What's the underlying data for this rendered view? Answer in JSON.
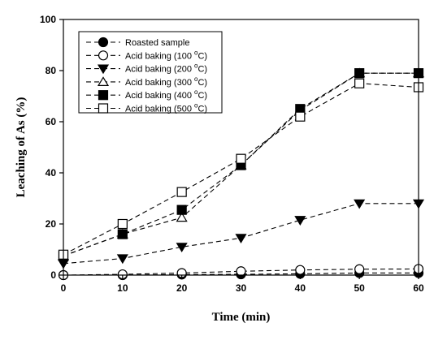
{
  "chart_data": {
    "type": "line",
    "xlabel": "Time (min)",
    "ylabel": "Leaching of As (%)",
    "xlim": [
      0,
      60
    ],
    "ylim": [
      0,
      100
    ],
    "xticks": [
      0,
      10,
      20,
      30,
      40,
      50,
      60
    ],
    "yticks": [
      0,
      20,
      40,
      60,
      80,
      100
    ],
    "grid": false,
    "legend_position": "top-left",
    "x": [
      0,
      10,
      20,
      30,
      40,
      50,
      60
    ],
    "series": [
      {
        "name_prefix": "Roasted sample",
        "name_sup": "",
        "name_suffix": "",
        "marker": "circle-filled",
        "values": [
          0,
          0,
          0.2,
          0.3,
          0.5,
          0.8,
          0.8
        ]
      },
      {
        "name_prefix": "Acid baking (100 ",
        "name_sup": "o",
        "name_suffix": "C)",
        "marker": "circle-open",
        "values": [
          0,
          0.3,
          0.8,
          1.5,
          2.0,
          2.3,
          2.4
        ]
      },
      {
        "name_prefix": "Acid baking (200 ",
        "name_sup": "o",
        "name_suffix": "C)",
        "marker": "triangle-down-filled",
        "values": [
          4.5,
          6.5,
          11,
          14.5,
          21.5,
          28,
          28
        ]
      },
      {
        "name_prefix": "Acid baking (300 ",
        "name_sup": "o",
        "name_suffix": "C)",
        "marker": "triangle-up-open",
        "values": [
          7.5,
          16,
          22.5,
          43,
          64.5,
          79,
          79
        ]
      },
      {
        "name_prefix": "Acid baking (400 ",
        "name_sup": "o",
        "name_suffix": "C)",
        "marker": "square-filled",
        "values": [
          7.5,
          16,
          25.5,
          43,
          65,
          79,
          79
        ]
      },
      {
        "name_prefix": "Acid baking (500 ",
        "name_sup": "o",
        "name_suffix": "C)",
        "marker": "square-open",
        "values": [
          8,
          20,
          32.5,
          45.5,
          62,
          75,
          73.5
        ]
      }
    ]
  }
}
